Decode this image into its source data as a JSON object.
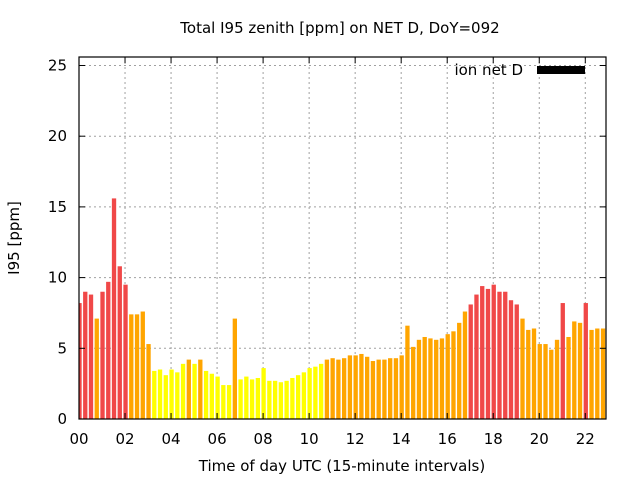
{
  "chart_data": {
    "type": "bar",
    "title": "Total I95 zenith [ppm] on NET D, DoY=092",
    "xlabel": "Time of day UTC (15-minute intervals)",
    "ylabel": "I95 [ppm]",
    "xlim": [
      0,
      22.9
    ],
    "ylim": [
      0,
      25.6
    ],
    "x_step_hours": 0.25,
    "xticks": [
      0,
      2,
      4,
      6,
      8,
      10,
      12,
      14,
      16,
      18,
      20,
      22
    ],
    "xtick_labels": [
      "00",
      "02",
      "04",
      "06",
      "08",
      "10",
      "12",
      "14",
      "16",
      "18",
      "20",
      "22"
    ],
    "yticks": [
      0,
      5,
      10,
      15,
      20,
      25
    ],
    "ytick_labels": [
      "0",
      "5",
      "10",
      "15",
      "20",
      "25"
    ],
    "grid": true,
    "legend": {
      "label": "ion net D",
      "placement": "top-right",
      "color": "#000000"
    },
    "color_thresholds": [
      {
        "below": 4,
        "color": "#ffff00"
      },
      {
        "below": 8,
        "color": "#ffa500"
      },
      {
        "below": 999,
        "color": "#f04848"
      }
    ],
    "values": [
      8.2,
      9.0,
      8.8,
      7.1,
      9.0,
      9.7,
      15.6,
      10.8,
      9.5,
      7.4,
      7.4,
      7.6,
      5.3,
      3.4,
      3.5,
      3.1,
      3.5,
      3.3,
      3.9,
      4.2,
      3.9,
      4.2,
      3.4,
      3.2,
      3.0,
      2.4,
      2.4,
      7.1,
      2.8,
      3.0,
      2.8,
      2.9,
      3.6,
      2.7,
      2.7,
      2.6,
      2.7,
      2.9,
      3.1,
      3.3,
      3.6,
      3.7,
      3.9,
      4.2,
      4.3,
      4.2,
      4.3,
      4.5,
      4.5,
      4.6,
      4.4,
      4.1,
      4.2,
      4.2,
      4.3,
      4.3,
      4.5,
      6.6,
      5.1,
      5.6,
      5.8,
      5.7,
      5.6,
      5.7,
      6.0,
      6.2,
      6.8,
      7.6,
      8.1,
      8.8,
      9.4,
      9.2,
      9.5,
      9.0,
      9.0,
      8.4,
      8.1,
      7.1,
      6.3,
      6.4,
      5.3,
      5.3,
      4.9,
      5.6,
      8.2,
      5.8,
      6.9,
      6.8,
      8.2,
      6.3,
      6.4,
      6.4
    ]
  }
}
